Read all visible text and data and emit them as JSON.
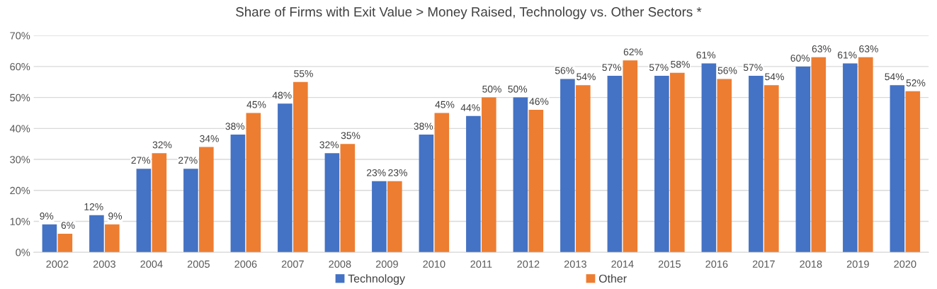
{
  "chart_data": {
    "type": "bar",
    "title": "Share of Firms with Exit Value > Money Raised, Technology vs. Other Sectors *",
    "categories": [
      "2002",
      "2003",
      "2004",
      "2005",
      "2006",
      "2007",
      "2008",
      "2009",
      "2010",
      "2011",
      "2012",
      "2013",
      "2014",
      "2015",
      "2016",
      "2017",
      "2018",
      "2019",
      "2020"
    ],
    "series": [
      {
        "name": "Technology",
        "color": "#4472c4",
        "values": [
          9,
          12,
          27,
          27,
          38,
          48,
          32,
          23,
          38,
          44,
          50,
          56,
          57,
          57,
          61,
          57,
          60,
          61,
          54
        ],
        "value_labels": [
          "9%",
          "12%",
          "27%",
          "27%",
          "38%",
          "48%",
          "32%",
          "23%",
          "38%",
          "44%",
          "50%",
          "56%",
          "57%",
          "57%",
          "61%",
          "57%",
          "60%",
          "61%",
          "54%"
        ]
      },
      {
        "name": "Other",
        "color": "#ed7d31",
        "values": [
          6,
          9,
          32,
          34,
          45,
          55,
          35,
          23,
          45,
          50,
          46,
          54,
          62,
          58,
          56,
          54,
          63,
          63,
          52
        ],
        "value_labels": [
          "6%",
          "9%",
          "32%",
          "34%",
          "45%",
          "55%",
          "35%",
          "23%",
          "45%",
          "50%",
          "46%",
          "54%",
          "62%",
          "58%",
          "56%",
          "54%",
          "63%",
          "63%",
          "52%"
        ]
      }
    ],
    "ylim": [
      0,
      70
    ],
    "yticks": [
      {
        "value": 0,
        "label": "0%"
      },
      {
        "value": 10,
        "label": "10%"
      },
      {
        "value": 20,
        "label": "20%"
      },
      {
        "value": 30,
        "label": "30%"
      },
      {
        "value": 40,
        "label": "40%"
      },
      {
        "value": 50,
        "label": "50%"
      },
      {
        "value": 60,
        "label": "60%"
      },
      {
        "value": 70,
        "label": "70%"
      }
    ],
    "grid": "y",
    "legend": "bottom"
  }
}
